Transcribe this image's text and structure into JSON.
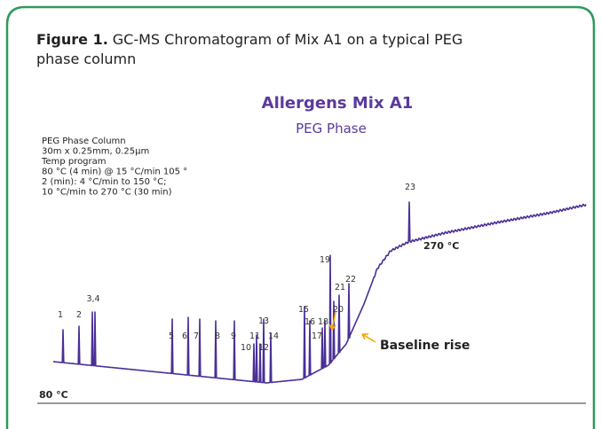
{
  "figure": {
    "label": "Figure 1.",
    "caption_line1": "GC-MS Chromatogram of Mix A1 on a typical PEG",
    "caption_line2": "phase column"
  },
  "chart": {
    "title": "Allergens Mix A1",
    "subtitle": "PEG Phase",
    "method_notes": [
      "PEG Phase Column",
      "30m x 0.25mm, 0.25µm",
      "Temp program",
      "80 °C (4 min) @ 15 °C/min 105 °",
      "2 (min): 4 °C/min to 150 °C;",
      "10 °C/min to 270 °C (30 min)"
    ],
    "peak_labels": [
      "1",
      "2",
      "3,4",
      "5",
      "6",
      "7",
      "8",
      "9",
      "10",
      "11",
      "12",
      "13",
      "14",
      "15",
      "16",
      "17",
      "18",
      "19",
      "20",
      "21",
      "22",
      "23"
    ],
    "start_temp": "80 °C",
    "end_temp": "270 °C",
    "annotation": "Baseline rise"
  }
}
